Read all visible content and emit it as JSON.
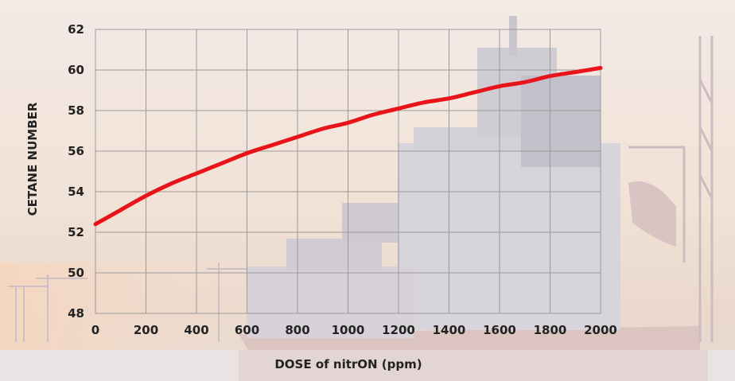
{
  "chart_data": {
    "type": "line",
    "title": "",
    "xlabel": "DOSE of nitrON (ppm)",
    "ylabel": "CETANE NUMBER",
    "xlim": [
      0,
      2000
    ],
    "ylim": [
      48,
      62
    ],
    "x_ticks": [
      "0",
      "200",
      "400",
      "600",
      "800",
      "1000",
      "1200",
      "1400",
      "1600",
      "1800",
      "2000"
    ],
    "y_ticks": [
      "48",
      "50",
      "52",
      "54",
      "56",
      "58",
      "60",
      "62"
    ],
    "grid": true,
    "line_color": "#e8141a",
    "series": [
      {
        "x": [
          0,
          100,
          200,
          300,
          400,
          500,
          600,
          700,
          800,
          900,
          1000,
          1100,
          1200,
          1300,
          1400,
          1500,
          1600,
          1700,
          1800,
          1900,
          2000
        ],
        "values": [
          52.4,
          53.1,
          53.8,
          54.4,
          54.9,
          55.4,
          55.9,
          56.3,
          56.7,
          57.1,
          57.4,
          57.8,
          58.1,
          58.4,
          58.6,
          58.9,
          59.2,
          59.4,
          59.7,
          59.9,
          60.1
        ]
      }
    ]
  }
}
